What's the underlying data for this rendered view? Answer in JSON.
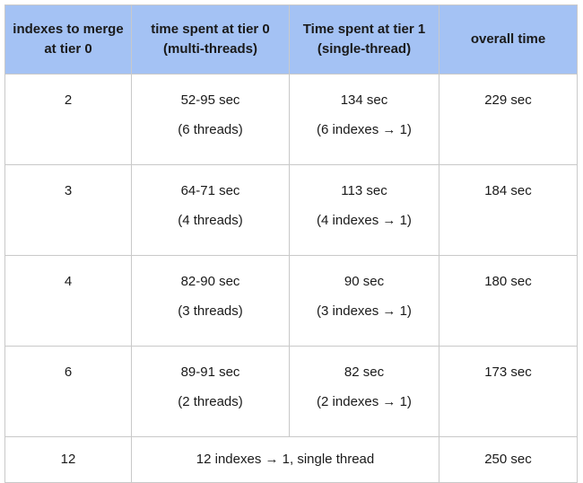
{
  "table": {
    "headers": [
      "indexes to merge at tier 0",
      "time spent at tier 0 (multi-threads)",
      "Time spent at tier 1 (single-thread)",
      "overall time"
    ],
    "rows": [
      {
        "indexes": "2",
        "tier0_time": "52-95 sec",
        "tier0_threads": "(6 threads)",
        "tier1_time": "134 sec",
        "tier1_detail": "(6 indexes → 1)",
        "overall": "229 sec"
      },
      {
        "indexes": "3",
        "tier0_time": "64-71 sec",
        "tier0_threads": "(4 threads)",
        "tier1_time": "113 sec",
        "tier1_detail": "(4 indexes → 1)",
        "overall": "184 sec"
      },
      {
        "indexes": "4",
        "tier0_time": "82-90 sec",
        "tier0_threads": "(3 threads)",
        "tier1_time": "90 sec",
        "tier1_detail": "(3 indexes → 1)",
        "overall": "180 sec"
      },
      {
        "indexes": "6",
        "tier0_time": "89-91 sec",
        "tier0_threads": "(2 threads)",
        "tier1_time": "82 sec",
        "tier1_detail": "(2 indexes → 1)",
        "overall": "173 sec"
      }
    ],
    "last_row": {
      "indexes": "12",
      "merged": "12 indexes → 1, single thread",
      "overall": "250 sec"
    }
  },
  "colors": {
    "header_bg": "#a4c2f4",
    "border": "#c9c9c9"
  }
}
